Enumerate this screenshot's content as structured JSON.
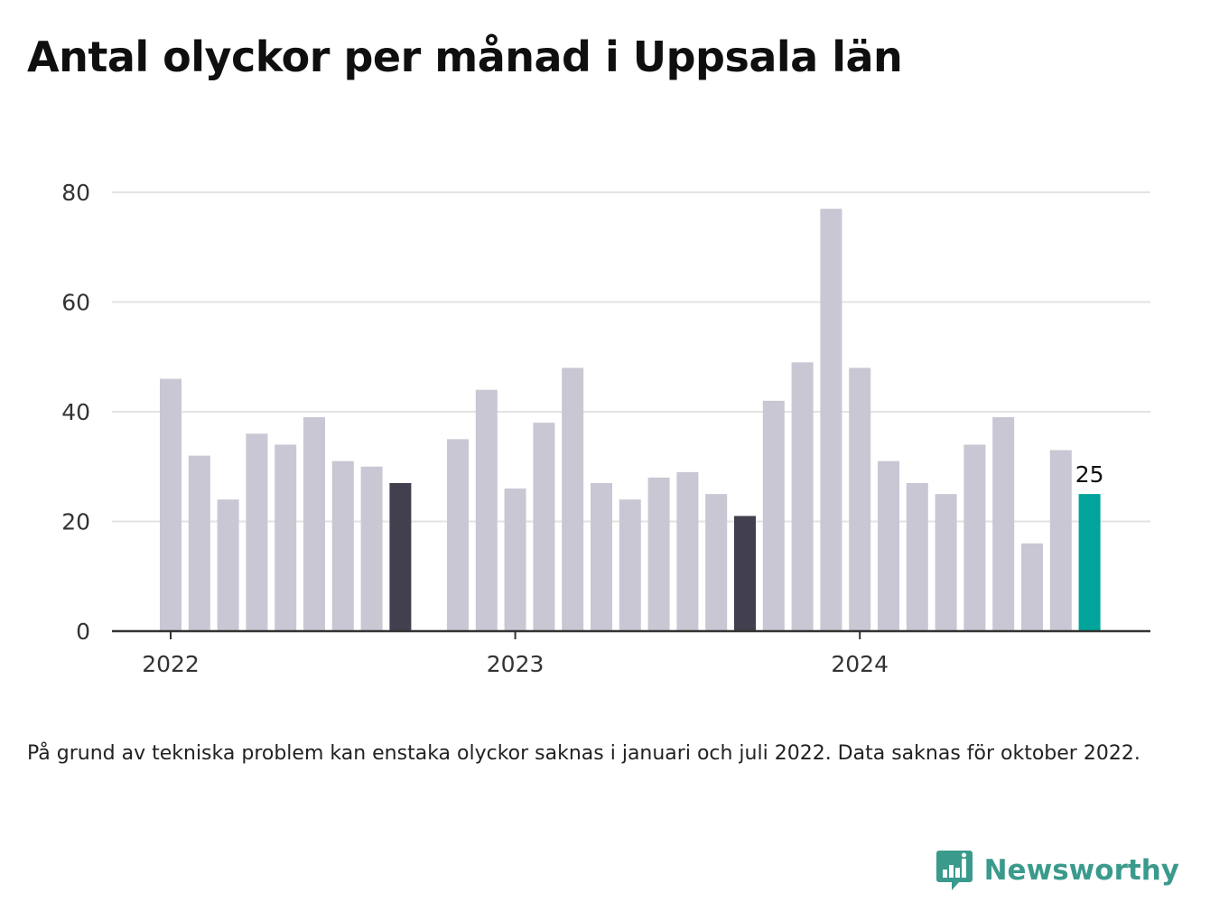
{
  "title": "Antal olyckor per månad i Uppsala län",
  "footnote": "På grund av tekniska problem kan enstaka olyckor saknas i januari och juli 2022. Data saknas för oktober 2022.",
  "brand": {
    "name": "Newsworthy",
    "icon": "newsworthy-logo-icon",
    "color": "#3a9a8c"
  },
  "colors": {
    "default": "#c9c7d3",
    "september": "#42404e",
    "highlight": "#00a49a",
    "grid": "#e3e3e3",
    "axis": "#333333"
  },
  "chart_data": {
    "type": "bar",
    "ylim": [
      0,
      80
    ],
    "yticks": [
      0,
      20,
      40,
      60,
      80
    ],
    "xticks": [
      "2022",
      "2023",
      "2024"
    ],
    "grid": true,
    "categories": [
      "2022-01",
      "2022-02",
      "2022-03",
      "2022-04",
      "2022-05",
      "2022-06",
      "2022-07",
      "2022-08",
      "2022-09",
      "2022-10",
      "2022-11",
      "2022-12",
      "2023-01",
      "2023-02",
      "2023-03",
      "2023-04",
      "2023-05",
      "2023-06",
      "2023-07",
      "2023-08",
      "2023-09",
      "2023-10",
      "2023-11",
      "2023-12",
      "2024-01",
      "2024-02",
      "2024-03",
      "2024-04",
      "2024-05",
      "2024-06",
      "2024-07",
      "2024-08",
      "2024-09"
    ],
    "values": [
      46,
      32,
      24,
      36,
      34,
      39,
      31,
      30,
      27,
      null,
      35,
      44,
      26,
      38,
      48,
      27,
      24,
      28,
      29,
      25,
      21,
      42,
      49,
      77,
      48,
      31,
      27,
      25,
      34,
      39,
      16,
      33,
      25
    ],
    "highlight": {
      "category": "2024-09",
      "label": "25"
    },
    "dark_categories": [
      "2022-09",
      "2023-09"
    ]
  }
}
